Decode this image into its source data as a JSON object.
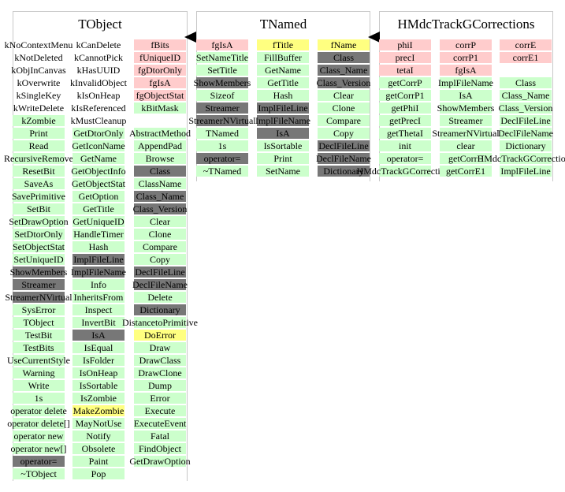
{
  "classes": [
    {
      "name": "TObject",
      "columns": [
        [
          {
            "t": "kNoContextMenu",
            "s": "w"
          },
          {
            "t": "kNotDeleted",
            "s": "w"
          },
          {
            "t": "kObjInCanvas",
            "s": "w"
          },
          {
            "t": "kOverwrite",
            "s": "w"
          },
          {
            "t": "kSingleKey",
            "s": "w"
          },
          {
            "t": "kWriteDelete",
            "s": "w"
          },
          {
            "t": "kZombie",
            "s": "g"
          },
          {
            "t": "Print",
            "s": "g"
          },
          {
            "t": "Read",
            "s": "g"
          },
          {
            "t": "RecursiveRemove",
            "s": "g"
          },
          {
            "t": "ResetBit",
            "s": "g"
          },
          {
            "t": "SaveAs",
            "s": "g"
          },
          {
            "t": "SavePrimitive",
            "s": "g"
          },
          {
            "t": "SetBit",
            "s": "g"
          },
          {
            "t": "SetDrawOption",
            "s": "g"
          },
          {
            "t": "SetDtorOnly",
            "s": "g"
          },
          {
            "t": "SetObjectStat",
            "s": "g"
          },
          {
            "t": "SetUniqueID",
            "s": "g"
          },
          {
            "t": "ShowMembers",
            "s": "d"
          },
          {
            "t": "Streamer",
            "s": "d"
          },
          {
            "t": "StreamerNVirtual",
            "s": "d"
          },
          {
            "t": "SysError",
            "s": "g"
          },
          {
            "t": "TObject",
            "s": "g"
          },
          {
            "t": "TestBit",
            "s": "g"
          },
          {
            "t": "TestBits",
            "s": "g"
          },
          {
            "t": "UseCurrentStyle",
            "s": "g"
          },
          {
            "t": "Warning",
            "s": "g"
          },
          {
            "t": "Write",
            "s": "g"
          },
          {
            "t": "1s",
            "s": "g"
          },
          {
            "t": "operator delete",
            "s": "g"
          },
          {
            "t": "operator delete[]",
            "s": "g"
          },
          {
            "t": "operator new",
            "s": "g"
          },
          {
            "t": "operator new[]",
            "s": "g"
          },
          {
            "t": "operator=",
            "s": "d"
          },
          {
            "t": "~TObject",
            "s": "g"
          }
        ],
        [
          {
            "t": "kCanDelete",
            "s": "w"
          },
          {
            "t": "kCannotPick",
            "s": "w"
          },
          {
            "t": "kHasUUID",
            "s": "w"
          },
          {
            "t": "kInvalidObject",
            "s": "w"
          },
          {
            "t": "kIsOnHeap",
            "s": "w"
          },
          {
            "t": "kIsReferenced",
            "s": "w"
          },
          {
            "t": "kMustCleanup",
            "s": "w"
          },
          {
            "t": "GetDtorOnly",
            "s": "g"
          },
          {
            "t": "GetIconName",
            "s": "g"
          },
          {
            "t": "GetName",
            "s": "g"
          },
          {
            "t": "GetObjectInfo",
            "s": "g"
          },
          {
            "t": "GetObjectStat",
            "s": "g"
          },
          {
            "t": "GetOption",
            "s": "g"
          },
          {
            "t": "GetTitle",
            "s": "g"
          },
          {
            "t": "GetUniqueID",
            "s": "g"
          },
          {
            "t": "HandleTimer",
            "s": "g"
          },
          {
            "t": "Hash",
            "s": "g"
          },
          {
            "t": "ImplFileLine",
            "s": "d"
          },
          {
            "t": "ImplFileName",
            "s": "d"
          },
          {
            "t": "Info",
            "s": "g"
          },
          {
            "t": "InheritsFrom",
            "s": "g"
          },
          {
            "t": "Inspect",
            "s": "g"
          },
          {
            "t": "InvertBit",
            "s": "g"
          },
          {
            "t": "IsA",
            "s": "d"
          },
          {
            "t": "IsEqual",
            "s": "g"
          },
          {
            "t": "IsFolder",
            "s": "g"
          },
          {
            "t": "IsOnHeap",
            "s": "g"
          },
          {
            "t": "IsSortable",
            "s": "g"
          },
          {
            "t": "IsZombie",
            "s": "g"
          },
          {
            "t": "MakeZombie",
            "s": "y"
          },
          {
            "t": "MayNotUse",
            "s": "g"
          },
          {
            "t": "Notify",
            "s": "g"
          },
          {
            "t": "Obsolete",
            "s": "g"
          },
          {
            "t": "Paint",
            "s": "g"
          },
          {
            "t": "Pop",
            "s": "g"
          }
        ],
        [
          {
            "t": "fBits",
            "s": "p"
          },
          {
            "t": "fUniqueID",
            "s": "p"
          },
          {
            "t": "fgDtorOnly",
            "s": "p"
          },
          {
            "t": "fgIsA",
            "s": "p"
          },
          {
            "t": "fgObjectStat",
            "s": "p"
          },
          {
            "t": "kBitMask",
            "s": "g"
          },
          {
            "t": "",
            "s": "w"
          },
          {
            "t": "AbstractMethod",
            "s": "g"
          },
          {
            "t": "AppendPad",
            "s": "g"
          },
          {
            "t": "Browse",
            "s": "g"
          },
          {
            "t": "Class",
            "s": "d"
          },
          {
            "t": "ClassName",
            "s": "g"
          },
          {
            "t": "Class_Name",
            "s": "d"
          },
          {
            "t": "Class_Version",
            "s": "d"
          },
          {
            "t": "Clear",
            "s": "g"
          },
          {
            "t": "Clone",
            "s": "g"
          },
          {
            "t": "Compare",
            "s": "g"
          },
          {
            "t": "Copy",
            "s": "g"
          },
          {
            "t": "DeclFileLine",
            "s": "d"
          },
          {
            "t": "DeclFileName",
            "s": "d"
          },
          {
            "t": "Delete",
            "s": "g"
          },
          {
            "t": "Dictionary",
            "s": "d"
          },
          {
            "t": "DistancetoPrimitive",
            "s": "g"
          },
          {
            "t": "DoError",
            "s": "y"
          },
          {
            "t": "Draw",
            "s": "g"
          },
          {
            "t": "DrawClass",
            "s": "g"
          },
          {
            "t": "DrawClone",
            "s": "g"
          },
          {
            "t": "Dump",
            "s": "g"
          },
          {
            "t": "Error",
            "s": "g"
          },
          {
            "t": "Execute",
            "s": "g"
          },
          {
            "t": "ExecuteEvent",
            "s": "g"
          },
          {
            "t": "Fatal",
            "s": "g"
          },
          {
            "t": "FindObject",
            "s": "g"
          },
          {
            "t": "GetDrawOption",
            "s": "g"
          }
        ]
      ]
    },
    {
      "name": "TNamed",
      "columns": [
        [
          {
            "t": "fgIsA",
            "s": "p"
          },
          {
            "t": "SetNameTitle",
            "s": "g"
          },
          {
            "t": "SetTitle",
            "s": "g"
          },
          {
            "t": "ShowMembers",
            "s": "d"
          },
          {
            "t": "Sizeof",
            "s": "g"
          },
          {
            "t": "Streamer",
            "s": "d"
          },
          {
            "t": "StreamerNVirtual",
            "s": "d"
          },
          {
            "t": "TNamed",
            "s": "g"
          },
          {
            "t": "1s",
            "s": "g"
          },
          {
            "t": "operator=",
            "s": "d"
          },
          {
            "t": "~TNamed",
            "s": "g"
          }
        ],
        [
          {
            "t": "fTitle",
            "s": "y"
          },
          {
            "t": "FillBuffer",
            "s": "g"
          },
          {
            "t": "GetName",
            "s": "g"
          },
          {
            "t": "GetTitle",
            "s": "g"
          },
          {
            "t": "Hash",
            "s": "g"
          },
          {
            "t": "ImplFileLine",
            "s": "d"
          },
          {
            "t": "ImplFileName",
            "s": "d"
          },
          {
            "t": "IsA",
            "s": "d"
          },
          {
            "t": "IsSortable",
            "s": "g"
          },
          {
            "t": "Print",
            "s": "g"
          },
          {
            "t": "SetName",
            "s": "g"
          }
        ],
        [
          {
            "t": "fName",
            "s": "y"
          },
          {
            "t": "Class",
            "s": "d"
          },
          {
            "t": "Class_Name",
            "s": "d"
          },
          {
            "t": "Class_Version",
            "s": "d"
          },
          {
            "t": "Clear",
            "s": "g"
          },
          {
            "t": "Clone",
            "s": "g"
          },
          {
            "t": "Compare",
            "s": "g"
          },
          {
            "t": "Copy",
            "s": "g"
          },
          {
            "t": "DeclFileLine",
            "s": "d"
          },
          {
            "t": "DeclFileName",
            "s": "d"
          },
          {
            "t": "Dictionary",
            "s": "d"
          }
        ]
      ]
    },
    {
      "name": "HMdcTrackGCorrections",
      "columns": [
        [
          {
            "t": "phiI",
            "s": "p"
          },
          {
            "t": "precI",
            "s": "p"
          },
          {
            "t": "tetaI",
            "s": "p"
          },
          {
            "t": "getCorrP",
            "s": "g"
          },
          {
            "t": "getCorrP1",
            "s": "g"
          },
          {
            "t": "getPhiI",
            "s": "g"
          },
          {
            "t": "getPrecI",
            "s": "g"
          },
          {
            "t": "getThetaI",
            "s": "g"
          },
          {
            "t": "init",
            "s": "g"
          },
          {
            "t": "operator=",
            "s": "g"
          },
          {
            "t": "HMdcTrackGCorrections",
            "s": "g"
          }
        ],
        [
          {
            "t": "corrP",
            "s": "p"
          },
          {
            "t": "corrP1",
            "s": "p"
          },
          {
            "t": "fgIsA",
            "s": "p"
          },
          {
            "t": "ImplFileName",
            "s": "g"
          },
          {
            "t": "IsA",
            "s": "g"
          },
          {
            "t": "ShowMembers",
            "s": "g"
          },
          {
            "t": "Streamer",
            "s": "g"
          },
          {
            "t": "StreamerNVirtual",
            "s": "g"
          },
          {
            "t": "clear",
            "s": "g"
          },
          {
            "t": "getCorrE",
            "s": "g"
          },
          {
            "t": "getCorrE1",
            "s": "g"
          }
        ],
        [
          {
            "t": "corrE",
            "s": "p"
          },
          {
            "t": "corrE1",
            "s": "p"
          },
          {
            "t": "",
            "s": "w"
          },
          {
            "t": "Class",
            "s": "g"
          },
          {
            "t": "Class_Name",
            "s": "g"
          },
          {
            "t": "Class_Version",
            "s": "g"
          },
          {
            "t": "DeclFileLine",
            "s": "g"
          },
          {
            "t": "DeclFileName",
            "s": "g"
          },
          {
            "t": "Dictionary",
            "s": "g"
          },
          {
            "t": "HMdcTrackGCorrections",
            "s": "g"
          },
          {
            "t": "ImplFileLine",
            "s": "g"
          }
        ]
      ]
    }
  ],
  "colors": {
    "member_public": "#ccffcc",
    "member_private": "#ffcccc",
    "member_protected": "#ffff80",
    "member_inherited_overridden": "#777777",
    "frame": "#c8c8c8",
    "arrow": "#000000"
  }
}
